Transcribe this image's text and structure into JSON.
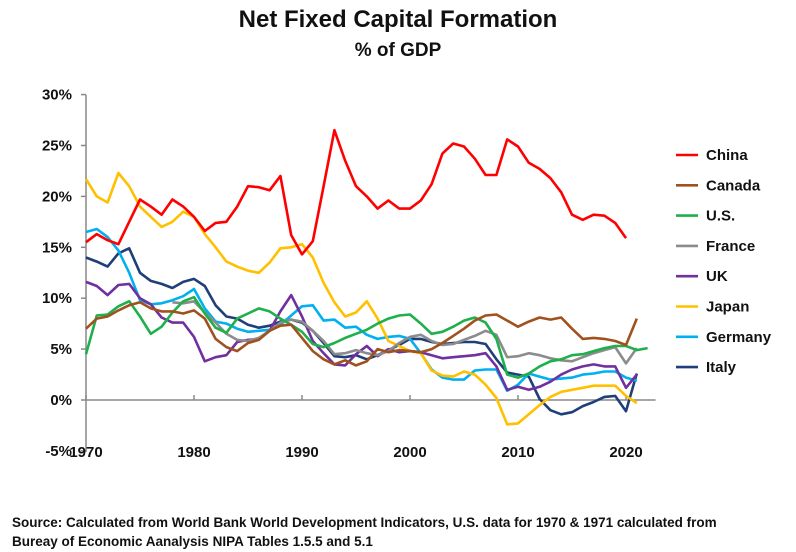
{
  "chart_data": {
    "type": "line",
    "title": "Net Fixed Capital Formation",
    "subtitle": "% of GDP",
    "xlabel": "",
    "ylabel": "",
    "xlim": [
      1970,
      2022
    ],
    "ylim": [
      -5,
      30
    ],
    "x_ticks": [
      "1970",
      "1980",
      "1990",
      "2000",
      "2010",
      "2020"
    ],
    "y_ticks": [
      "-5%",
      "0%",
      "5%",
      "10%",
      "15%",
      "20%",
      "25%",
      "30%"
    ],
    "grid": false,
    "legend": "right",
    "series": [
      {
        "name": "China",
        "color": "#ff0000",
        "start": 1970,
        "values": [
          15.5,
          16.3,
          15.7,
          15.3,
          17.5,
          19.7,
          19.0,
          18.2,
          19.7,
          19.0,
          18.0,
          16.6,
          17.4,
          17.5,
          19.0,
          21.0,
          20.9,
          20.6,
          22.0,
          16.2,
          14.3,
          15.6,
          21.0,
          26.5,
          23.5,
          21.0,
          20.0,
          18.8,
          19.6,
          18.8,
          18.8,
          19.6,
          21.2,
          24.2,
          25.2,
          24.9,
          23.7,
          22.1,
          22.1,
          25.6,
          24.9,
          23.3,
          22.7,
          21.8,
          20.4,
          18.2,
          17.7,
          18.2,
          18.1,
          17.4,
          15.9
        ]
      },
      {
        "name": "Canada",
        "color": "#a0521e",
        "start": 1970,
        "values": [
          7.0,
          8.0,
          8.2,
          8.8,
          9.3,
          9.6,
          9.0,
          8.7,
          8.7,
          8.5,
          8.8,
          8.0,
          6.0,
          5.2,
          4.8,
          5.6,
          5.9,
          6.8,
          7.3,
          7.4,
          6.1,
          4.8,
          4.0,
          3.5,
          3.9,
          3.4,
          3.8,
          5.0,
          4.7,
          4.9,
          4.8,
          4.7,
          5.0,
          5.6,
          6.3,
          7.0,
          7.8,
          8.3,
          8.4,
          7.8,
          7.2,
          7.7,
          8.1,
          7.9,
          8.1,
          7.0,
          6.0,
          6.1,
          6.0,
          5.8,
          5.4,
          8.0
        ]
      },
      {
        "name": "U.S.",
        "color": "#1db04b",
        "start": 1970,
        "values": [
          4.5,
          8.3,
          8.4,
          9.2,
          9.7,
          8.2,
          6.5,
          7.2,
          8.6,
          9.7,
          10.1,
          8.5,
          7.1,
          6.6,
          8.0,
          8.5,
          9.0,
          8.7,
          8.0,
          7.4,
          6.7,
          5.5,
          5.2,
          5.6,
          6.1,
          6.5,
          6.9,
          7.5,
          8.0,
          8.3,
          8.4,
          7.5,
          6.5,
          6.7,
          7.2,
          7.8,
          8.1,
          7.6,
          6.0,
          2.5,
          2.2,
          2.6,
          3.3,
          3.8,
          4.0,
          4.4,
          4.5,
          4.8,
          5.1,
          5.3,
          5.3,
          4.9,
          5.1
        ]
      },
      {
        "name": "France",
        "color": "#8c8c8c",
        "start": 1978,
        "values": [
          9.6,
          9.5,
          9.7,
          8.6,
          7.6,
          6.5,
          5.9,
          5.8,
          6.1,
          6.8,
          7.6,
          7.9,
          7.7,
          6.8,
          5.8,
          4.5,
          4.6,
          4.9,
          4.6,
          4.4,
          4.8,
          5.6,
          6.2,
          6.4,
          5.8,
          5.4,
          5.5,
          5.9,
          6.3,
          6.8,
          6.4,
          4.2,
          4.3,
          4.6,
          4.4,
          4.1,
          3.9,
          3.8,
          4.2,
          4.6,
          4.9,
          5.2,
          3.6,
          5.1
        ]
      },
      {
        "name": "UK",
        "color": "#7030a0",
        "start": 1970,
        "values": [
          11.6,
          11.2,
          10.3,
          11.3,
          11.4,
          10.0,
          9.4,
          8.1,
          7.6,
          7.6,
          6.2,
          3.8,
          4.2,
          4.4,
          5.7,
          5.9,
          6.0,
          6.8,
          8.7,
          10.3,
          8.2,
          5.8,
          4.6,
          3.5,
          3.4,
          4.5,
          5.3,
          4.3,
          5.0,
          4.7,
          4.8,
          4.7,
          4.4,
          4.1,
          4.2,
          4.3,
          4.4,
          4.6,
          3.3,
          1.0,
          1.3,
          1.0,
          1.3,
          1.8,
          2.5,
          3.0,
          3.3,
          3.5,
          3.3,
          3.3,
          1.2,
          2.5
        ]
      },
      {
        "name": "Japan",
        "color": "#ffc000",
        "start": 1970,
        "values": [
          21.7,
          20.0,
          19.4,
          22.3,
          21.0,
          19.0,
          18.0,
          17.0,
          17.5,
          18.5,
          18.0,
          16.3,
          15.0,
          13.6,
          13.1,
          12.7,
          12.5,
          13.5,
          14.9,
          15.0,
          15.3,
          14.0,
          11.5,
          9.6,
          8.2,
          8.6,
          9.7,
          8.0,
          5.8,
          5.3,
          4.8,
          4.6,
          2.9,
          2.4,
          2.3,
          2.8,
          2.5,
          1.5,
          0.2,
          -2.4,
          -2.3,
          -1.4,
          -0.5,
          0.3,
          0.8,
          1.0,
          1.2,
          1.4,
          1.4,
          1.4,
          0.4,
          -0.3
        ]
      },
      {
        "name": "Germany",
        "color": "#00b0f0",
        "start": 1970,
        "values": [
          16.5,
          16.8,
          16.0,
          14.7,
          12.5,
          9.8,
          9.4,
          9.5,
          9.8,
          10.2,
          10.9,
          9.0,
          7.7,
          7.5,
          7.0,
          6.7,
          6.8,
          6.9,
          7.4,
          8.3,
          9.2,
          9.3,
          7.8,
          7.9,
          7.1,
          7.2,
          6.4,
          6.0,
          6.2,
          6.3,
          6.0,
          4.6,
          3.0,
          2.2,
          2.0,
          2.0,
          2.9,
          3.0,
          3.0,
          0.9,
          1.5,
          2.6,
          2.3,
          2.0,
          2.1,
          2.2,
          2.5,
          2.6,
          2.8,
          2.8,
          2.2,
          1.9
        ]
      },
      {
        "name": "Italy",
        "color": "#1f3f7a",
        "start": 1970,
        "values": [
          14.0,
          13.6,
          13.1,
          14.4,
          14.9,
          12.5,
          11.7,
          11.4,
          11.0,
          11.6,
          11.9,
          11.2,
          9.3,
          8.2,
          8.0,
          7.4,
          7.1,
          7.3,
          7.7,
          7.9,
          7.6,
          6.8,
          5.6,
          4.3,
          4.2,
          4.4,
          4.0,
          4.4,
          4.9,
          5.4,
          6.0,
          6.0,
          5.7,
          5.5,
          5.6,
          5.7,
          5.7,
          5.5,
          4.0,
          2.7,
          2.5,
          2.3,
          0.1,
          -1.0,
          -1.4,
          -1.2,
          -0.6,
          -0.2,
          0.3,
          0.4,
          -1.1,
          2.6
        ]
      }
    ]
  },
  "source": {
    "line1": "Source:  Calculated from World Bank World Development Indicators, U.S. data for 1970 & 1971 calculated from",
    "line2": "Bureay of Economic Aanalysis NIPA Tables 1.5.5 and 5.1"
  }
}
